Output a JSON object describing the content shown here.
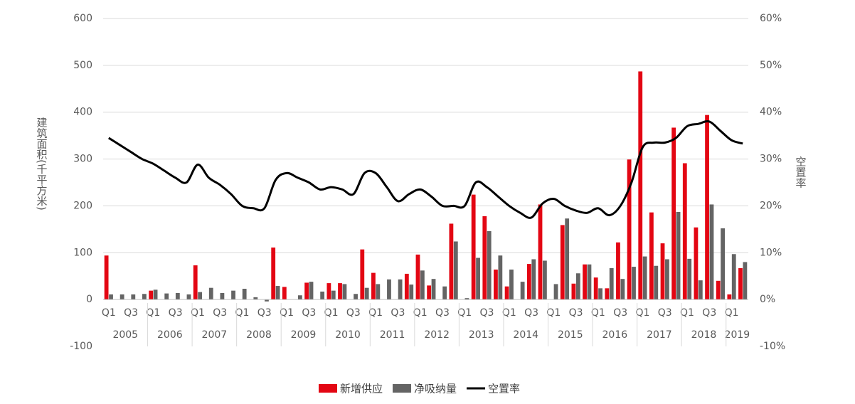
{
  "chart_data": {
    "type": "bar_line",
    "y_label": "建筑面积(千平方米)",
    "y2_label": "空置率",
    "categories": [
      "Q1",
      null,
      "Q3",
      null,
      "Q1",
      null,
      "Q3",
      null,
      "Q1",
      null,
      "Q3",
      null,
      "Q1",
      null,
      "Q3",
      null,
      "Q1",
      null,
      "Q3",
      null,
      "Q1",
      null,
      "Q3",
      null,
      "Q1",
      null,
      "Q3",
      null,
      "Q1",
      null,
      "Q3",
      null,
      "Q1",
      null,
      "Q3",
      null,
      "Q1",
      null,
      "Q3",
      null,
      "Q1",
      null,
      "Q3",
      null,
      "Q1",
      null,
      "Q3",
      null,
      "Q1",
      null,
      "Q3",
      null,
      "Q1",
      null,
      "Q3",
      null,
      "Q1",
      null
    ],
    "years": [
      "2005",
      "2006",
      "2007",
      "2008",
      "2009",
      "2010",
      "2011",
      "2012",
      "2013",
      "2014",
      "2015",
      "2016",
      "2017",
      "2018",
      "2019"
    ],
    "series": [
      {
        "name": "新增供应",
        "color": "#e30613",
        "values": [
          94,
          0,
          0,
          0,
          19,
          0,
          0,
          0,
          73,
          0,
          0,
          0,
          0,
          0,
          0,
          111,
          27,
          0,
          36,
          0,
          35,
          35,
          0,
          107,
          57,
          0,
          0,
          55,
          96,
          30,
          0,
          162,
          0,
          224,
          178,
          64,
          28,
          0,
          76,
          203,
          0,
          159,
          34,
          75,
          47,
          24,
          122,
          299,
          487,
          186,
          120,
          367,
          291,
          154,
          394,
          40,
          11,
          67
        ]
      },
      {
        "name": "净吸纳量",
        "color": "#646464",
        "values": [
          11,
          11,
          11,
          12,
          21,
          13,
          14,
          11,
          16,
          25,
          14,
          19,
          23,
          5,
          -4,
          29,
          0,
          9,
          38,
          17,
          19,
          33,
          12,
          25,
          33,
          43,
          43,
          32,
          62,
          44,
          28,
          124,
          3,
          89,
          146,
          94,
          64,
          38,
          86,
          83,
          33,
          173,
          56,
          75,
          24,
          67,
          44,
          70,
          92,
          72,
          86,
          187,
          87,
          41,
          203,
          152,
          97,
          80
        ]
      },
      {
        "name": "空置率",
        "color": "#000000",
        "axis": "y2",
        "values": [
          34.5,
          33,
          31.5,
          30,
          29,
          27.5,
          26,
          25,
          28.8,
          26,
          24.5,
          22.5,
          20,
          19.5,
          19.5,
          25.5,
          27,
          26,
          25,
          23.5,
          24,
          23.5,
          22.5,
          27,
          27,
          24,
          21,
          22.5,
          23.5,
          22,
          20,
          20,
          20,
          25,
          24,
          22,
          20,
          18.5,
          17.5,
          20.5,
          21.5,
          20,
          19,
          18.5,
          19.5,
          18,
          20,
          25,
          32.5,
          33.5,
          33.5,
          34.5,
          37,
          37.5,
          38,
          36,
          34,
          33.3
        ]
      }
    ],
    "ylim": [
      -100,
      600
    ],
    "yticks": [
      600,
      500,
      400,
      300,
      200,
      100,
      0,
      -100
    ],
    "y2lim": [
      -10,
      60
    ],
    "y2ticks": [
      {
        "value": 60,
        "label": "60%"
      },
      {
        "value": 50,
        "label": "50%"
      },
      {
        "value": 40,
        "label": "40%"
      },
      {
        "value": 30,
        "label": "30%"
      },
      {
        "value": 20,
        "label": "20%"
      },
      {
        "value": 10,
        "label": "10%"
      },
      {
        "value": 0,
        "label": "0%"
      },
      {
        "value": -10,
        "label": "-10%"
      }
    ],
    "grid": true
  }
}
